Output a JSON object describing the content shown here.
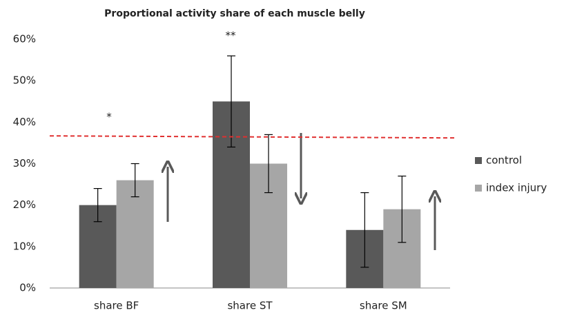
{
  "chart_data": {
    "type": "bar",
    "title": "Proportional  activity share of each  muscle belly",
    "categories": [
      "share BF",
      "share ST",
      "share SM"
    ],
    "series": [
      {
        "name": "control",
        "color": "#595959",
        "values": [
          20,
          45,
          14
        ],
        "errors": [
          4,
          11,
          9
        ]
      },
      {
        "name": "index injury",
        "color": "#a6a6a6",
        "values": [
          26,
          30,
          19
        ],
        "errors": [
          4,
          7,
          8
        ]
      }
    ],
    "ylim": [
      0,
      60
    ],
    "yticks": [
      {
        "value": 0,
        "label": "0%"
      },
      {
        "value": 10,
        "label": "10%"
      },
      {
        "value": 20,
        "label": "20%"
      },
      {
        "value": 30,
        "label": "30%"
      },
      {
        "value": 40,
        "label": "40%"
      },
      {
        "value": 50,
        "label": "50%"
      },
      {
        "value": 60,
        "label": "60%"
      }
    ],
    "grid": false,
    "legend": "right",
    "reference_line": {
      "start": 36.7,
      "end": 36.2,
      "color": "#e03030"
    },
    "annotations": [
      "*",
      "**"
    ]
  }
}
